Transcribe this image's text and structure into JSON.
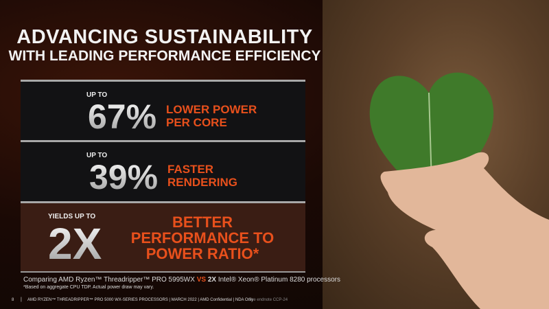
{
  "title": {
    "line1": "ADVANCING SUSTAINABILITY",
    "line2": "WITH LEADING PERFORMANCE EFFICIENCY"
  },
  "stats": [
    {
      "prefix": "UP TO",
      "value": "67%",
      "desc_line1": "LOWER POWER",
      "desc_line2": "PER CORE"
    },
    {
      "prefix": "UP TO",
      "value": "39%",
      "desc_line1": "FASTER",
      "desc_line2": "RENDERING"
    },
    {
      "prefix": "YIELDS UP TO",
      "value": "2X",
      "desc_line1": "BETTER",
      "desc_line2": "PERFORMANCE TO",
      "desc_line3": "POWER RATIO*"
    }
  ],
  "comparison": {
    "part1": "Comparing AMD Ryzen™ Threadripper™ PRO 5995WX ",
    "vs": "VS",
    "part2": " 2X",
    "part3": " Intel® Xeon® Platinum 8280 processors"
  },
  "footnote": "*Based on aggregate CPU TDP. Actual power draw may vary.",
  "footer": {
    "page": "8",
    "separator": "|",
    "text": "AMD RYZEN™ THREADRIPPER™ PRO 5000 WX-SERIES PROCESSORS | MARCH 2022 | AMD Confidential | NDA Only",
    "endnote": "See endnote CCP-24"
  },
  "colors": {
    "accent": "#e8501c",
    "leaf": "#3f7a2a"
  }
}
